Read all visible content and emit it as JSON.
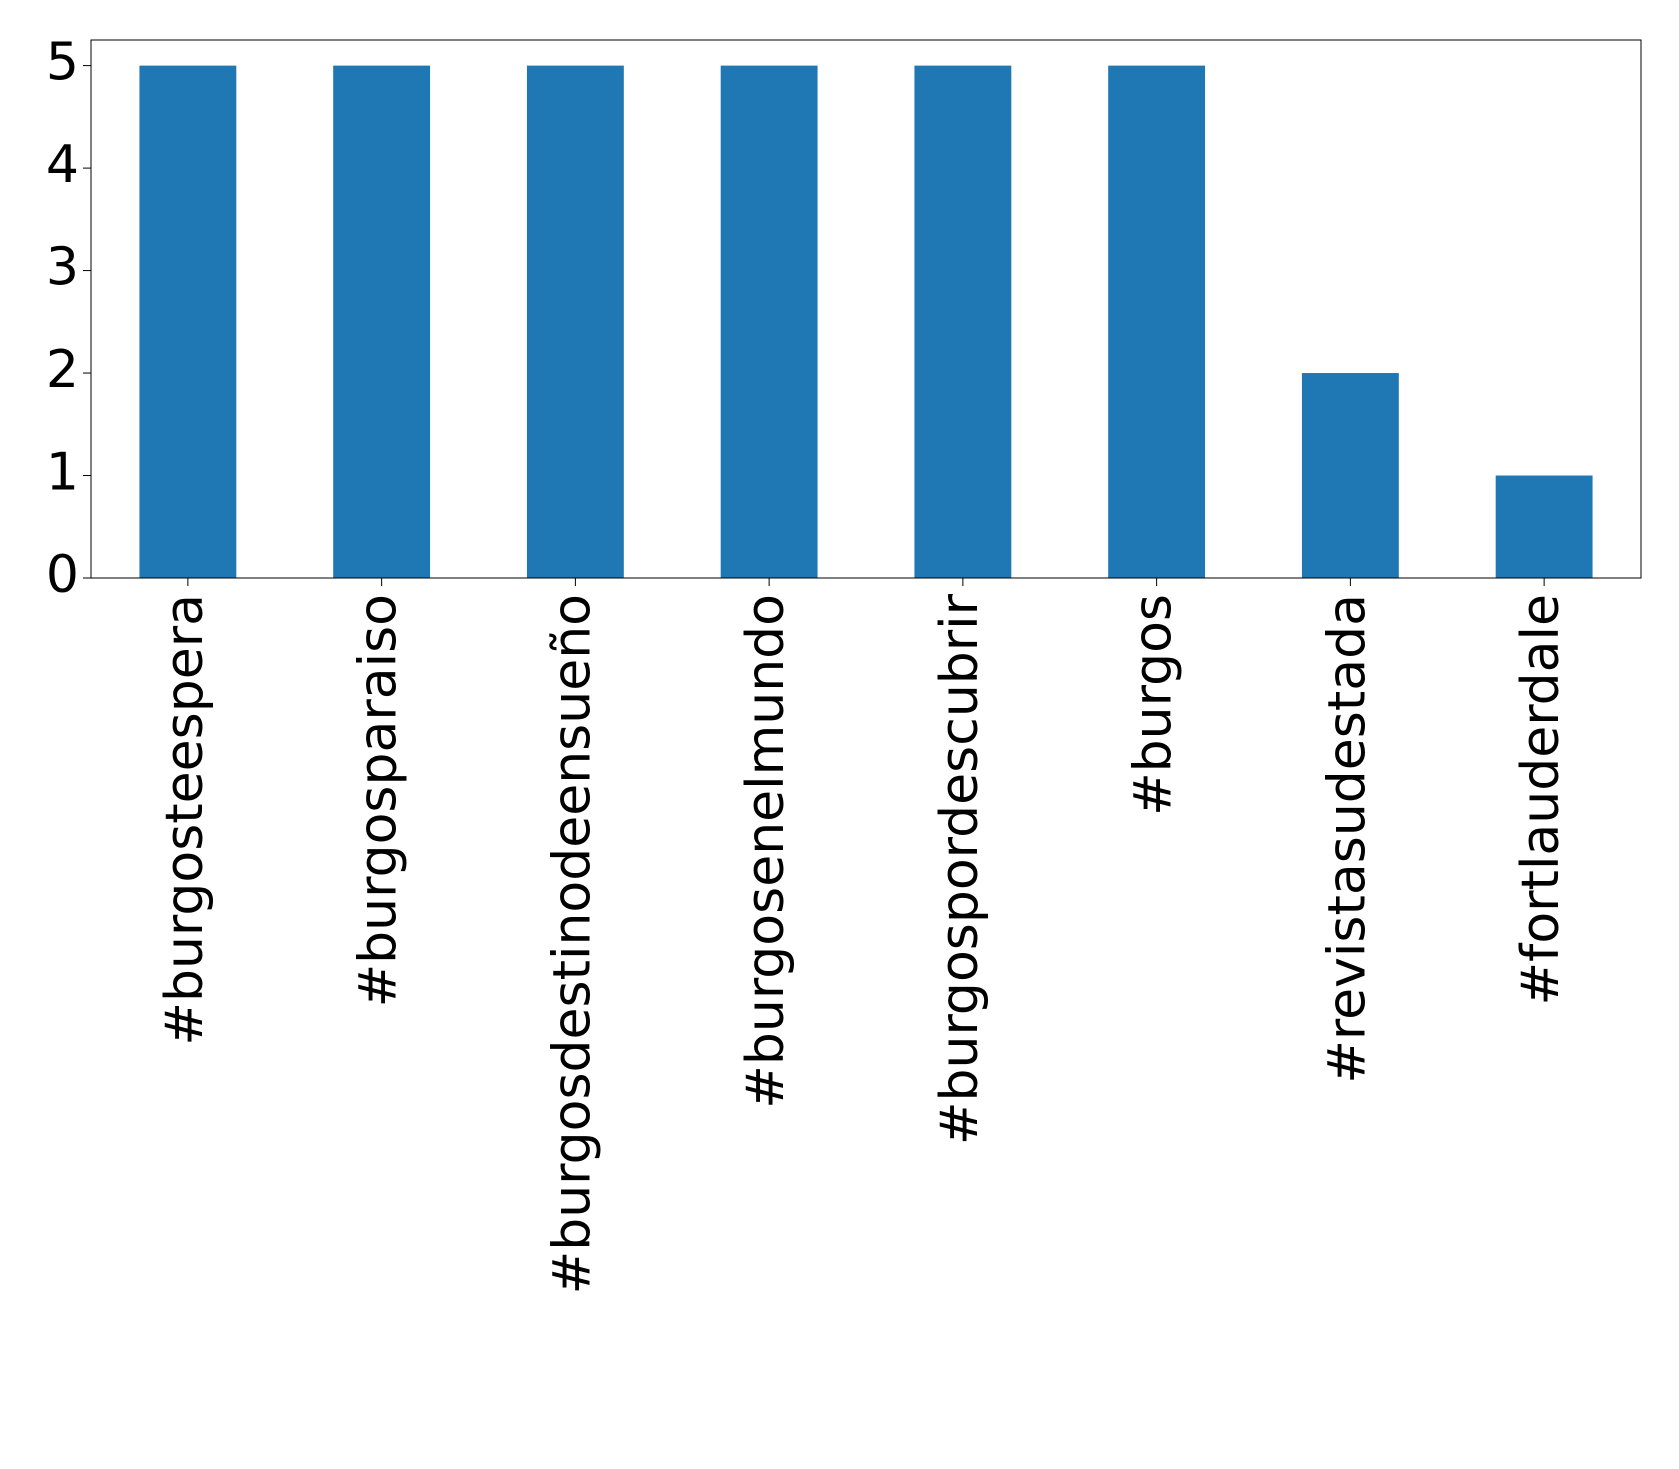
{
  "chart_data": {
    "type": "bar",
    "categories": [
      "#burgosteespera",
      "#burgosparaiso",
      "#burgosdestinodeensueño",
      "#burgosenelmundo",
      "#burgospordescubrir",
      "#burgos",
      "#revistasudestada",
      "#fortlauderdale"
    ],
    "values": [
      5,
      5,
      5,
      5,
      5,
      5,
      2,
      1
    ],
    "color": "#1f77b4",
    "ylim": [
      0,
      5.25
    ],
    "yticks": [
      0,
      1,
      2,
      3,
      4,
      5
    ],
    "grid": false
  }
}
